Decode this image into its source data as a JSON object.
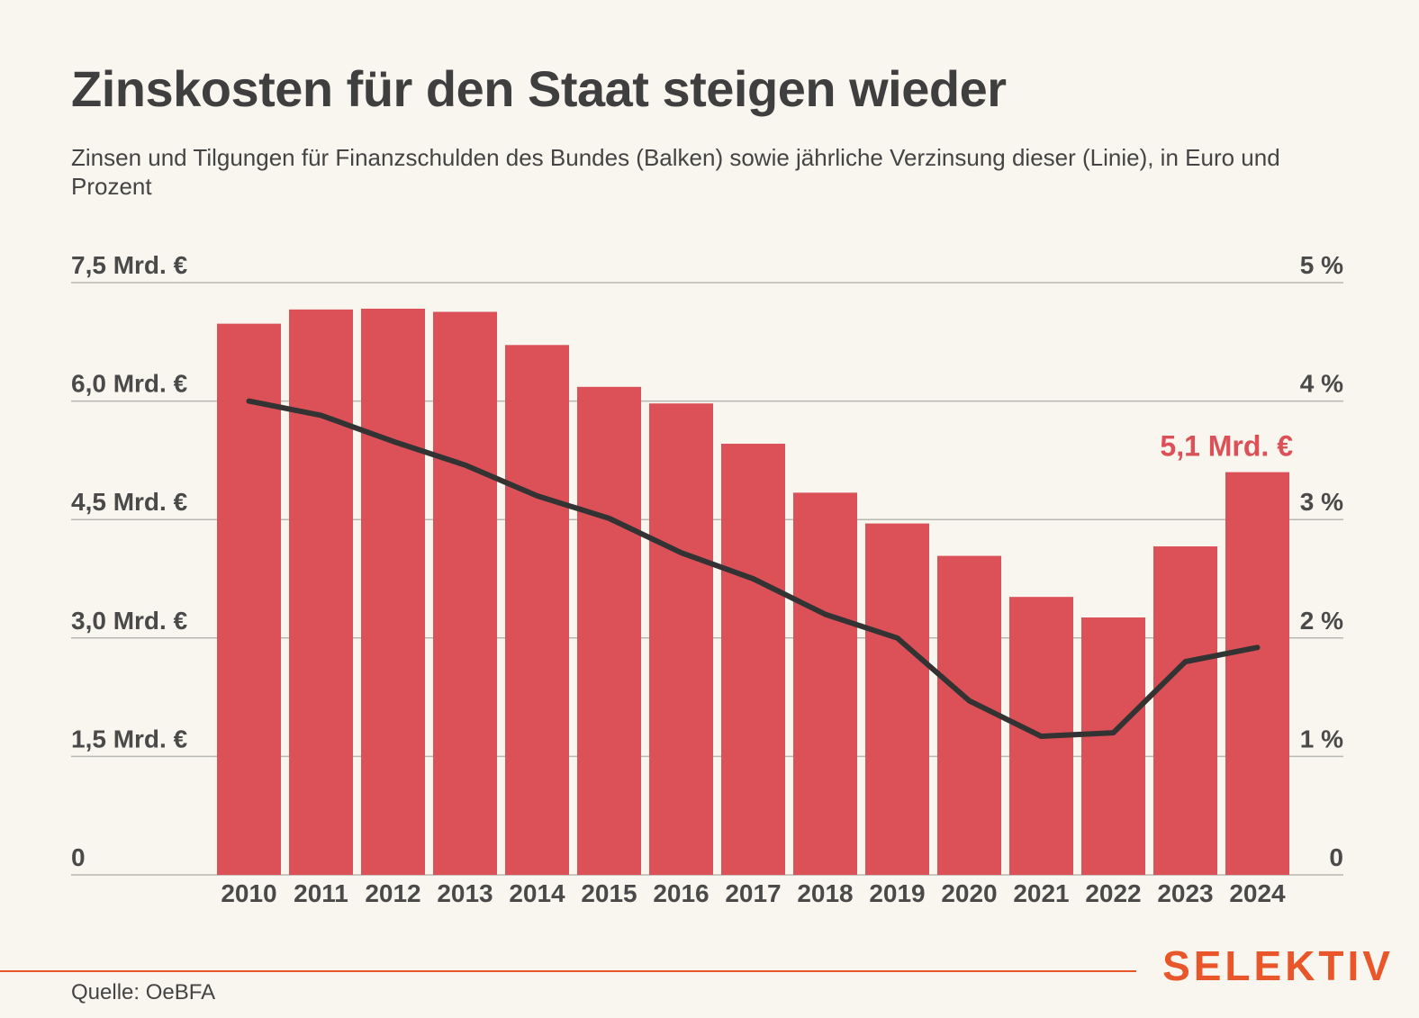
{
  "title": "Zinskosten für den Staat steigen wieder",
  "subtitle": "Zinsen und Tilgungen für Finanzschulden des Bundes (Balken) sowie jährliche Verzinsung dieser (Linie), in Euro und Prozent",
  "source": "Quelle: OeBFA",
  "brand": "SELEKTIV",
  "colors": {
    "bar": "#dc5157",
    "line": "#333333",
    "grid": "#b8b8b2",
    "accent": "#e8562a",
    "callout": "#dc5157"
  },
  "chart_data": {
    "type": "bar",
    "categories": [
      "2010",
      "2011",
      "2012",
      "2013",
      "2014",
      "2015",
      "2016",
      "2017",
      "2018",
      "2019",
      "2020",
      "2021",
      "2022",
      "2023",
      "2024"
    ],
    "series": [
      {
        "type": "bar",
        "axis": "left",
        "values": [
          6.98,
          7.16,
          7.17,
          7.13,
          6.71,
          6.18,
          5.97,
          5.46,
          4.84,
          4.45,
          4.04,
          3.52,
          3.26,
          4.16,
          5.1
        ]
      },
      {
        "type": "line",
        "axis": "right",
        "values": [
          4.0,
          3.88,
          3.66,
          3.46,
          3.2,
          3.01,
          2.72,
          2.5,
          2.2,
          2.0,
          1.47,
          1.17,
          1.2,
          1.8,
          1.92
        ]
      }
    ],
    "y_left": {
      "ylim": [
        0,
        7.5
      ],
      "ticks": [
        0,
        1.5,
        3.0,
        4.5,
        6.0,
        7.5
      ],
      "tick_labels": [
        "0",
        "1,5 Mrd. €",
        "3,0 Mrd. €",
        "4,5 Mrd. €",
        "6,0 Mrd. €",
        "7,5 Mrd. €"
      ]
    },
    "y_right": {
      "ylim": [
        0,
        5
      ],
      "ticks": [
        0,
        1,
        2,
        3,
        4,
        5
      ],
      "tick_labels": [
        "0",
        "1 %",
        "2 %",
        "3 %",
        "4 %",
        "5 %"
      ]
    },
    "annotations": [
      {
        "text": "5,1 Mrd. €",
        "category": "2024",
        "series": 0
      }
    ],
    "grid": true,
    "legend": "none"
  }
}
